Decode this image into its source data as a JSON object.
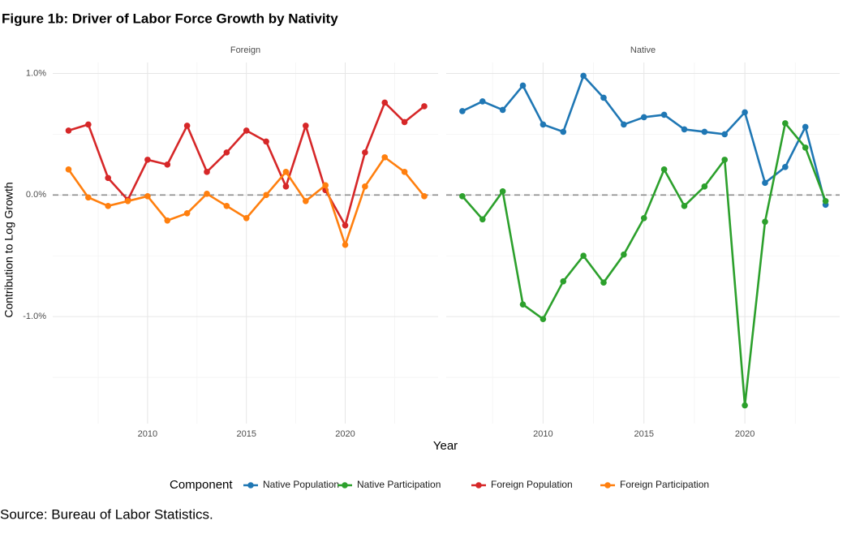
{
  "figure_title": "Figure 1b: Driver of Labor Force Growth by Nativity",
  "source": "Source: Bureau of Labor Statistics.",
  "chart_data": {
    "type": "line",
    "x": [
      2006,
      2007,
      2008,
      2009,
      2010,
      2011,
      2012,
      2013,
      2014,
      2015,
      2016,
      2017,
      2018,
      2019,
      2020,
      2021,
      2022,
      2023,
      2024
    ],
    "xlim": [
      2005.2,
      2024.7
    ],
    "xticks": [
      2010,
      2015,
      2020
    ],
    "minor_xticks": [
      2007.5,
      2012.5,
      2017.5,
      2022.5
    ],
    "ylim": [
      -1.88,
      1.09
    ],
    "yticks": [
      {
        "value": -1,
        "label": "-1.0%"
      },
      {
        "value": 0,
        "label": "0.0%"
      },
      {
        "value": 1,
        "label": "1.0%"
      }
    ],
    "minor_yticks": [
      -1.5,
      -0.5,
      0.5
    ],
    "hline": 0,
    "grid": true,
    "xlabel": "Year",
    "ylabel": "Contribution to Log Growth",
    "legend_title": "Component",
    "facets": [
      {
        "title": "Foreign",
        "series": [
          {
            "name": "Foreign Population",
            "color": "#d62728",
            "values": [
              0.53,
              0.58,
              0.14,
              -0.04,
              0.29,
              0.25,
              0.57,
              0.19,
              0.35,
              0.53,
              0.44,
              0.07,
              0.57,
              0.04,
              -0.25,
              0.35,
              0.76,
              0.6,
              0.73
            ]
          },
          {
            "name": "Foreign Participation",
            "color": "#ff7f0e",
            "values": [
              0.21,
              -0.02,
              -0.09,
              -0.05,
              -0.01,
              -0.21,
              -0.15,
              0.01,
              -0.09,
              -0.19,
              0.0,
              0.19,
              -0.05,
              0.08,
              -0.41,
              0.07,
              0.31,
              0.19,
              -0.01
            ]
          }
        ]
      },
      {
        "title": "Native",
        "series": [
          {
            "name": "Native Population",
            "color": "#1f77b4",
            "values": [
              0.69,
              0.77,
              0.7,
              0.9,
              0.58,
              0.52,
              0.98,
              0.8,
              0.58,
              0.64,
              0.66,
              0.54,
              0.52,
              0.5,
              0.68,
              0.1,
              0.23,
              0.56,
              -0.08
            ]
          },
          {
            "name": "Native Participation",
            "color": "#2ca02c",
            "values": [
              -0.01,
              -0.2,
              0.03,
              -0.9,
              -1.02,
              -0.71,
              -0.5,
              -0.72,
              -0.49,
              -0.19,
              0.21,
              -0.09,
              0.07,
              0.29,
              -1.73,
              -0.22,
              0.59,
              0.39,
              -0.05
            ]
          }
        ]
      }
    ]
  }
}
